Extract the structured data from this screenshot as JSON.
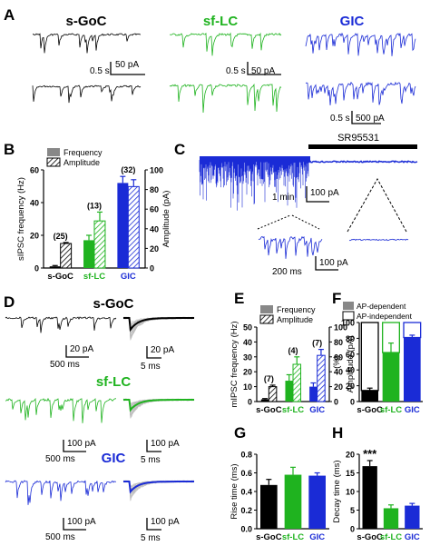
{
  "panels": {
    "A": "A",
    "B": "B",
    "C": "C",
    "D": "D",
    "E": "E",
    "F": "F",
    "G": "G",
    "H": "H"
  },
  "colors": {
    "goc": "#000000",
    "lc": "#1fb31f",
    "gic": "#1a2bd6"
  },
  "panelA": {
    "titles": [
      "s-GoC",
      "sf-LC",
      "GIC"
    ],
    "scalebars": [
      {
        "time": "0.5 s",
        "amp": "50 pA"
      },
      {
        "time": "0.5 s",
        "amp": "50 pA"
      },
      {
        "time": "0.5 s",
        "amp": "500 pA"
      }
    ]
  },
  "panelC": {
    "drug": "SR95531",
    "scale_main": {
      "time": "1 min",
      "amp": "100 pA"
    },
    "scale_inset": {
      "time": "200 ms",
      "amp": "100 pA"
    }
  },
  "panelD": {
    "titles": [
      "s-GoC",
      "sf-LC",
      "GIC"
    ],
    "scalebars": [
      {
        "time": "500 ms",
        "amp": "20 pA",
        "time2": "5 ms",
        "amp2": "20 pA"
      },
      {
        "time": "500 ms",
        "amp": "100 pA",
        "time2": "5 ms",
        "amp2": "100 pA"
      },
      {
        "time": "500 ms",
        "amp": "100 pA",
        "time2": "5 ms",
        "amp2": "100 pA"
      }
    ]
  },
  "chart_data": [
    {
      "id": "B",
      "type": "bar",
      "categories": [
        "s-GoC",
        "sf-LC",
        "GIC"
      ],
      "series": [
        {
          "name": "Frequency",
          "axis": "left",
          "values": [
            1,
            17,
            52
          ],
          "errors": [
            0.5,
            3,
            4
          ]
        },
        {
          "name": "Amplitude",
          "axis": "right",
          "values": [
            25,
            48,
            83
          ],
          "errors": [
            1,
            9,
            7
          ]
        }
      ],
      "n_labels": [
        "(25)",
        "(13)",
        "(32)"
      ],
      "ylabel": "sIPSC frequency (Hz)",
      "ylabel_right": "Amplitude (pA)",
      "ylim": [
        0,
        60
      ],
      "ylim_right": [
        0,
        100
      ],
      "yticks": [
        "0",
        "20",
        "40",
        "60"
      ],
      "yticks_right": [
        "0",
        "20",
        "40",
        "60",
        "80",
        "100"
      ],
      "legend": [
        "Frequency",
        "Amplitude"
      ]
    },
    {
      "id": "E",
      "type": "bar",
      "categories": [
        "s-GoC",
        "sf-LC",
        "GIC"
      ],
      "series": [
        {
          "name": "Frequency",
          "axis": "left",
          "values": [
            1.5,
            14,
            10
          ],
          "errors": [
            0.5,
            4,
            2.5
          ]
        },
        {
          "name": "Amplitude",
          "axis": "right",
          "values": [
            20,
            50,
            62
          ],
          "errors": [
            2,
            10,
            8
          ]
        }
      ],
      "n_labels": [
        "(7)",
        "(4)",
        "(7)"
      ],
      "ylabel": "mIPSC frequency (Hz)",
      "ylabel_right": "Amplitude (pA)",
      "ylim": [
        0,
        50
      ],
      "ylim_right": [
        0,
        100
      ],
      "yticks": [
        "0",
        "10",
        "20",
        "30",
        "40",
        "50"
      ],
      "yticks_right": [
        "0",
        "20",
        "40",
        "60",
        "80",
        "100"
      ],
      "legend": [
        "Frequency",
        "Amplitude"
      ]
    },
    {
      "id": "F",
      "type": "bar",
      "stacked": true,
      "categories": [
        "s-GoC",
        "sf-LC",
        "GIC"
      ],
      "series": [
        {
          "name": "AP-dependent",
          "values": [
            14,
            62,
            81
          ],
          "errors": [
            3,
            12,
            3
          ]
        },
        {
          "name": "AP-independent",
          "values": [
            86,
            38,
            19
          ]
        }
      ],
      "ylabel": "(%)",
      "ylim": [
        0,
        100
      ],
      "yticks": [
        "0",
        "20",
        "40",
        "60",
        "80",
        "100"
      ],
      "legend": [
        "AP-dependent",
        "AP-independent"
      ]
    },
    {
      "id": "G",
      "type": "bar",
      "categories": [
        "s-GoC",
        "sf-LC",
        "GIC"
      ],
      "values": [
        0.47,
        0.58,
        0.57
      ],
      "errors": [
        0.06,
        0.08,
        0.03
      ],
      "ylabel": "Rise time (ms)",
      "ylim": [
        0,
        0.8
      ],
      "yticks": [
        "0.0",
        "0.2",
        "0.4",
        "0.6",
        "0.8"
      ]
    },
    {
      "id": "H",
      "type": "bar",
      "categories": [
        "s-GoC",
        "sf-LC",
        "GIC"
      ],
      "values": [
        16.8,
        5.5,
        6.2
      ],
      "errors": [
        1.5,
        0.9,
        0.6
      ],
      "ylabel": "Decay time (ms)",
      "ylim": [
        0,
        20
      ],
      "yticks": [
        "0",
        "5",
        "10",
        "15",
        "20"
      ],
      "annotation": "***"
    }
  ]
}
